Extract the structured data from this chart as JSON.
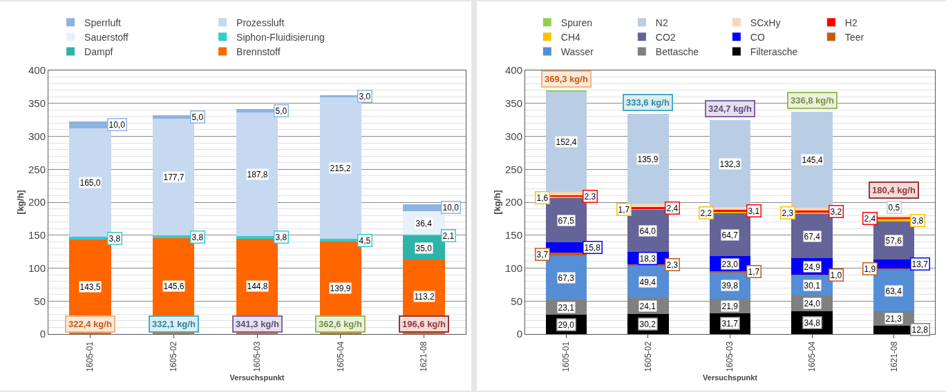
{
  "chart_data": [
    {
      "type": "bar",
      "stacked": true,
      "xlabel": "Versuchspunkt",
      "ylabel": "[kg/h]",
      "categories": [
        "1605-01",
        "1605-02",
        "1605-03",
        "1605-04",
        "1621-08"
      ],
      "ylim": [
        0,
        400
      ],
      "yticks": [
        0,
        50,
        100,
        150,
        200,
        250,
        300,
        350,
        400
      ],
      "grid": true,
      "legend": "top",
      "series": [
        {
          "name": "Brennstoff",
          "color": "#ff6600",
          "values": [
            143.5,
            145.6,
            144.8,
            139.9,
            113.2
          ],
          "value_labels": [
            "143,5",
            "145,6",
            "144,8",
            "139,9",
            "113,2"
          ]
        },
        {
          "name": "Dampf",
          "color": "#2fb3a8",
          "values": [
            null,
            null,
            null,
            null,
            35.0
          ],
          "value_labels": [
            null,
            null,
            null,
            null,
            "35,0"
          ]
        },
        {
          "name": "Siphon-Fluidisierung",
          "color": "#33cccc",
          "values": [
            3.8,
            3.8,
            3.8,
            4.5,
            2.1
          ],
          "value_labels": [
            "3,8",
            "3,8",
            "3,8",
            "4,5",
            "2,1"
          ]
        },
        {
          "name": "Sauerstoff",
          "color": "#e8f1fa",
          "values": [
            null,
            null,
            null,
            null,
            36.4
          ],
          "value_labels": [
            null,
            null,
            null,
            null,
            "36,4"
          ]
        },
        {
          "name": "Prozessluft",
          "color": "#c6d9f1",
          "values": [
            165.0,
            177.7,
            187.8,
            215.2,
            null
          ],
          "value_labels": [
            "165,0",
            "177,7",
            "187,8",
            "215,2",
            null
          ]
        },
        {
          "name": "Sperrluft",
          "color": "#8db3e2",
          "values": [
            10.0,
            5.0,
            5.0,
            3.0,
            10.0
          ],
          "value_labels": [
            "10,0",
            "5,0",
            "5,0",
            "3,0",
            "10,0"
          ]
        }
      ],
      "totals": [
        "322,4 kg/h",
        "332,1 kg/h",
        "341,3 kg/h",
        "362,6 kg/h",
        "196,6 kg/h"
      ]
    },
    {
      "type": "bar",
      "stacked": true,
      "xlabel": "Versuchspunkt",
      "ylabel": "[kg/h]",
      "categories": [
        "1605-01",
        "1605-02",
        "1605-03",
        "1605-04",
        "1621-08"
      ],
      "ylim": [
        0,
        400
      ],
      "yticks": [
        0,
        50,
        100,
        150,
        200,
        250,
        300,
        350,
        400
      ],
      "grid": true,
      "legend": "top",
      "series": [
        {
          "name": "Filterasche",
          "color": "#000000",
          "values": [
            29.0,
            30.2,
            31.7,
            34.8,
            12.8
          ],
          "value_labels": [
            "29,0",
            "30,2",
            "31,7",
            "34,8",
            "12,8"
          ]
        },
        {
          "name": "Bettasche",
          "color": "#808080",
          "values": [
            23.1,
            24.1,
            21.9,
            24.0,
            21.3
          ],
          "value_labels": [
            "23,1",
            "24,1",
            "21,9",
            "24,0",
            "21,3"
          ]
        },
        {
          "name": "Wasser",
          "color": "#558ed5",
          "values": [
            67.3,
            49.4,
            39.8,
            30.1,
            63.4
          ],
          "value_labels": [
            "67,3",
            "49,4",
            "39,8",
            "30,1",
            "63,4"
          ]
        },
        {
          "name": "Teer",
          "color": "#c55a11",
          "values": [
            3.7,
            2.3,
            1.7,
            1.0,
            1.9
          ],
          "value_labels": [
            "3,7",
            "2,3",
            "1,7",
            "1,0",
            "1,9"
          ]
        },
        {
          "name": "CO",
          "color": "#0000ff",
          "values": [
            15.8,
            18.3,
            23.0,
            24.9,
            13.7
          ],
          "value_labels": [
            "15,8",
            "18,3",
            "23,0",
            "24,9",
            "13,7"
          ]
        },
        {
          "name": "CO2",
          "color": "#646498",
          "values": [
            67.5,
            64.0,
            64.7,
            67.4,
            57.6
          ],
          "value_labels": [
            "67,5",
            "64,0",
            "64,7",
            "67,4",
            "57,6"
          ]
        },
        {
          "name": "CH4",
          "color": "#ffc000",
          "values": [
            1.6,
            1.7,
            2.2,
            2.3,
            3.8
          ],
          "value_labels": [
            "1,6",
            "1,7",
            "2,2",
            "2,3",
            "3,8"
          ]
        },
        {
          "name": "H2",
          "color": "#ff0000",
          "values": [
            2.3,
            2.4,
            3.1,
            3.2,
            2.4
          ],
          "value_labels": [
            "2,3",
            "2,4",
            "3,1",
            "3,2",
            "2,4"
          ]
        },
        {
          "name": "SCxHy",
          "color": "#fbd5b5",
          "values": [
            5.0,
            5.3,
            4.3,
            3.7,
            3.0
          ],
          "value_labels": [
            null,
            null,
            null,
            null,
            null
          ]
        },
        {
          "name": "N2",
          "color": "#b9cde5",
          "values": [
            152.4,
            135.9,
            132.3,
            145.4,
            0.5
          ],
          "value_labels": [
            "152,4",
            "135,9",
            "132,3",
            "145,4",
            "0,5"
          ]
        },
        {
          "name": "Spuren",
          "color": "#92d050",
          "values": [
            1.6,
            null,
            null,
            null,
            null
          ],
          "value_labels": [
            null,
            null,
            null,
            null,
            null
          ]
        }
      ],
      "totals": [
        "369,3 kg/h",
        "333,6 kg/h",
        "324,7 kg/h",
        "336,8 kg/h",
        "180,4 kg/h"
      ]
    }
  ]
}
